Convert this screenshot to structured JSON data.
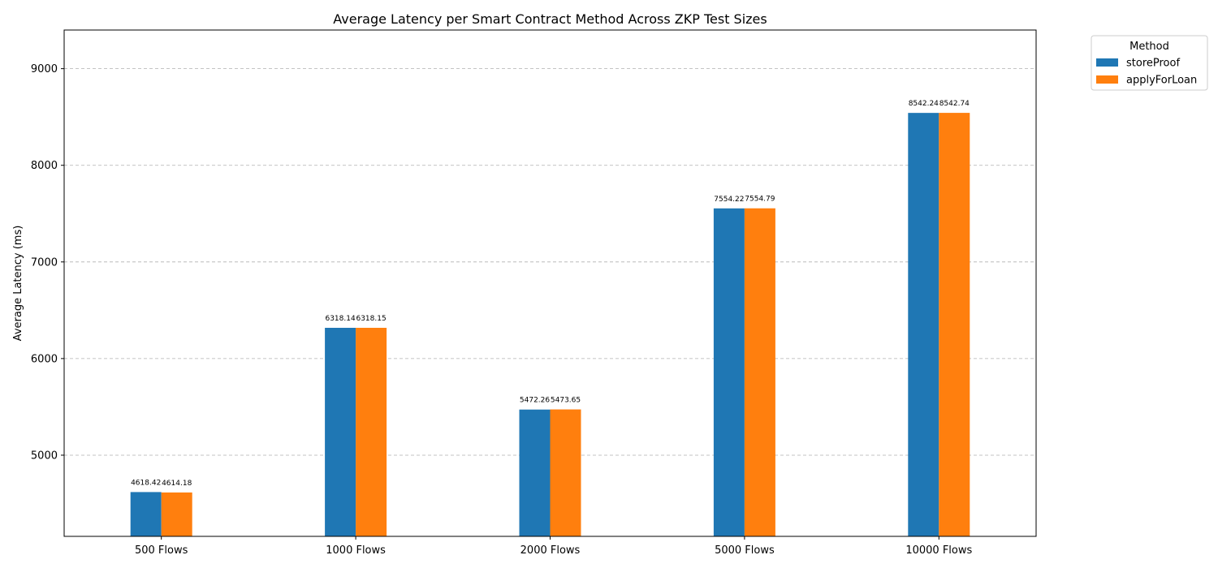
{
  "chart_data": {
    "type": "bar",
    "title": "Average Latency per Smart Contract Method Across ZKP Test Sizes",
    "xlabel": "",
    "ylabel": "Average Latency (ms)",
    "categories": [
      "500 Flows",
      "1000 Flows",
      "2000 Flows",
      "5000 Flows",
      "10000 Flows"
    ],
    "series": [
      {
        "name": "storeProof",
        "color": "#1f77b4",
        "values": [
          4618.42,
          6318.14,
          5472.26,
          7554.22,
          8542.24
        ]
      },
      {
        "name": "applyForLoan",
        "color": "#ff7f0e",
        "values": [
          4614.18,
          6318.15,
          5473.65,
          7554.79,
          8542.74
        ]
      }
    ],
    "ylim": [
      4160,
      9400
    ],
    "yticks": [
      5000,
      6000,
      7000,
      8000,
      9000
    ],
    "grid": "y-dashed",
    "legend": {
      "title": "Method",
      "placement": "outside-top-right"
    }
  }
}
